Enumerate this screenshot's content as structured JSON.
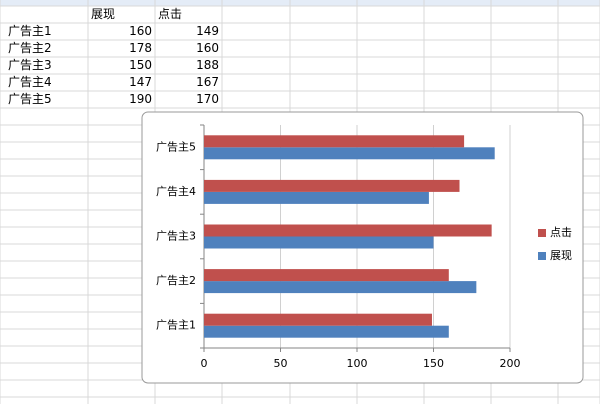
{
  "table": {
    "header": [
      "展现",
      "点击"
    ],
    "rows": [
      [
        "广告主1",
        160,
        149
      ],
      [
        "广告主2",
        178,
        160
      ],
      [
        "广告主3",
        150,
        188
      ],
      [
        "广告主4",
        147,
        167
      ],
      [
        "广告主5",
        190,
        170
      ]
    ]
  },
  "chart_data": {
    "type": "bar",
    "orientation": "horizontal",
    "categories": [
      "广告主1",
      "广告主2",
      "广告主3",
      "广告主4",
      "广告主5"
    ],
    "series": [
      {
        "name": "展现",
        "color": "#4f81bd",
        "values": [
          160,
          178,
          150,
          147,
          190
        ]
      },
      {
        "name": "点击",
        "color": "#c0504d",
        "values": [
          149,
          160,
          188,
          167,
          170
        ]
      }
    ],
    "xlim": [
      0,
      200
    ],
    "xticks": [
      0,
      50,
      100,
      150,
      200
    ],
    "grid": true,
    "legend": "right"
  }
}
